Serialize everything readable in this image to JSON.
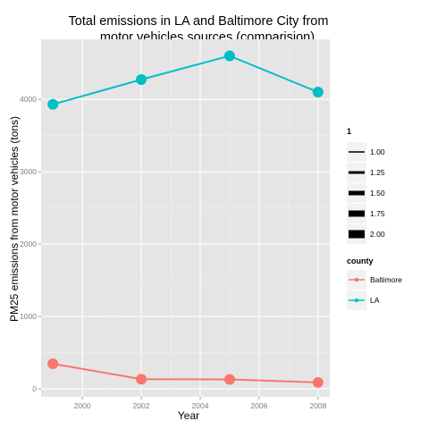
{
  "chart_data": {
    "type": "line",
    "title_lines": [
      "Total emissions in LA and Baltimore City from",
      "motor vehicles sources (comparision)"
    ],
    "xlabel": "Year",
    "ylabel": "PM25 emissions from motor vehicles (tons)",
    "x": [
      1999,
      2002,
      2005,
      2008
    ],
    "xlim": [
      1998.6,
      2008.4
    ],
    "ylim": [
      -110,
      4830
    ],
    "xticks": [
      2000,
      2002,
      2004,
      2006,
      2008
    ],
    "yticks": [
      0,
      1000,
      2000,
      3000,
      4000
    ],
    "series": [
      {
        "name": "Baltimore",
        "values": [
          346.8,
          134.3,
          130.4,
          88.3
        ],
        "color": "#F8766D"
      },
      {
        "name": "LA",
        "values": [
          3931.1,
          4274.0,
          4601.4,
          4101.3
        ],
        "color": "#00BFC4"
      }
    ],
    "grid": true,
    "legend_position": "right",
    "legends": {
      "size": {
        "title": "1",
        "labels": [
          "1.00",
          "1.25",
          "1.50",
          "1.75",
          "2.00"
        ]
      },
      "color": {
        "title": "county",
        "labels": [
          "Baltimore",
          "LA"
        ]
      }
    }
  }
}
